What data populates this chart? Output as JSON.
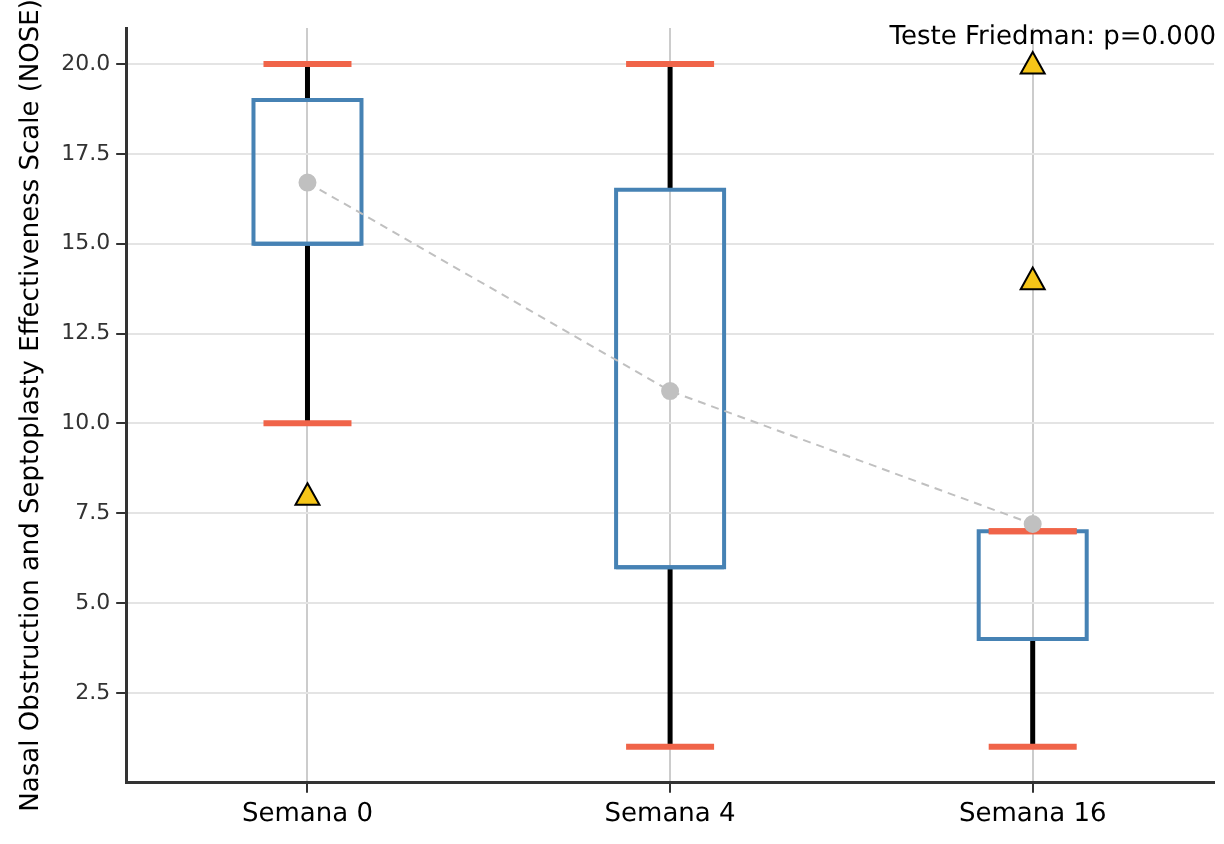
{
  "chart_data": {
    "type": "box",
    "ylabel": "Nasal Obstruction and Septoplasty Effectiveness Scale (NOSE)",
    "categories": [
      "Semana 0",
      "Semana 4",
      "Semana 16"
    ],
    "ylim": [
      0,
      21
    ],
    "yticks": [
      {
        "value": 2.5,
        "label": "2.5"
      },
      {
        "value": 5,
        "label": "5.0"
      },
      {
        "value": 7.5,
        "label": "7.5"
      },
      {
        "value": 10,
        "label": "10.0"
      },
      {
        "value": 12.5,
        "label": "12.5"
      },
      {
        "value": 15,
        "label": "15.0"
      },
      {
        "value": 17.5,
        "label": "17.5"
      },
      {
        "value": 20,
        "label": "20.0"
      }
    ],
    "grid": true,
    "legend": false,
    "annotations": [
      "Teste Friedman: p=0.000"
    ],
    "series": [
      {
        "color": "#4682b4",
        "marker": "triangle",
        "boxes": [
          {
            "low": 10,
            "q1": 15,
            "median": 15,
            "q3": 19,
            "high": 20,
            "outliers": [
              8
            ]
          },
          {
            "low": 1,
            "q1": 6,
            "median": 6,
            "q3": 16.5,
            "high": 20
          },
          {
            "low": 1,
            "q1": 4,
            "median": 4,
            "q3": 7,
            "high": 7,
            "outliers": [
              14,
              20
            ]
          }
        ]
      },
      {
        "type": "line",
        "color": "#c0c0c0",
        "values": [
          16.7,
          10.9,
          7.2
        ],
        "line_style": "dashed",
        "marker": "circle"
      }
    ]
  }
}
